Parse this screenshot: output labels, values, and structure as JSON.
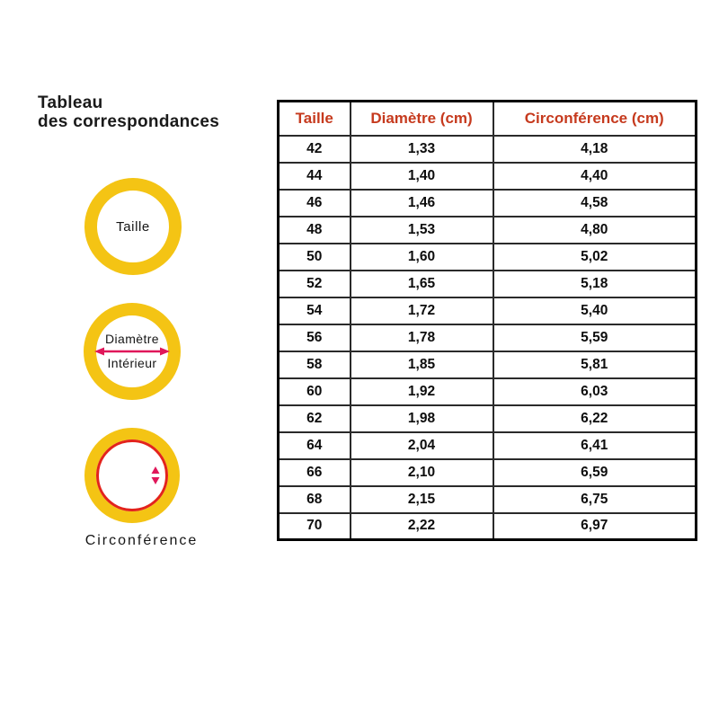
{
  "colors": {
    "ring_yellow": "#F4C414",
    "circle_red": "#E3231C",
    "arrow_crimson": "#E0175A",
    "header_text": "#C63A1E",
    "grid_line": "#2A2A2A",
    "table_border": "#000000",
    "text_black": "#1A1A1A",
    "page_bg": "#FFFFFF"
  },
  "left_panel": {
    "title_line1": "Tableau",
    "title_line2": "des correspondances",
    "ring_taille": {
      "label": "Taille"
    },
    "ring_diametre": {
      "label_line1": "Diamètre",
      "label_line2": "Intérieur"
    },
    "ring_circonference": {
      "label": "Circonférence"
    }
  },
  "chart_data": {
    "type": "table",
    "title": "Tableau des correspondances",
    "columns": [
      "Taille",
      "Diamètre (cm)",
      "Circonférence (cm)"
    ],
    "rows": [
      [
        "42",
        "1,33",
        "4,18"
      ],
      [
        "44",
        "1,40",
        "4,40"
      ],
      [
        "46",
        "1,46",
        "4,58"
      ],
      [
        "48",
        "1,53",
        "4,80"
      ],
      [
        "50",
        "1,60",
        "5,02"
      ],
      [
        "52",
        "1,65",
        "5,18"
      ],
      [
        "54",
        "1,72",
        "5,40"
      ],
      [
        "56",
        "1,78",
        "5,59"
      ],
      [
        "58",
        "1,85",
        "5,81"
      ],
      [
        "60",
        "1,92",
        "6,03"
      ],
      [
        "62",
        "1,98",
        "6,22"
      ],
      [
        "64",
        "2,04",
        "6,41"
      ],
      [
        "66",
        "2,10",
        "6,59"
      ],
      [
        "68",
        "2,15",
        "6,75"
      ],
      [
        "70",
        "2,22",
        "6,97"
      ]
    ]
  }
}
